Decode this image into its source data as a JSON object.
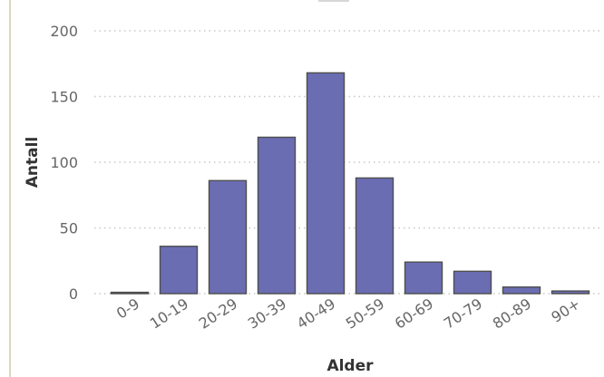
{
  "chart_data": {
    "type": "bar",
    "title": "",
    "xlabel": "Alder",
    "ylabel": "Antall",
    "categories": [
      "0-9",
      "10-19",
      "20-29",
      "30-39",
      "40-49",
      "50-59",
      "60-69",
      "70-79",
      "80-89",
      "90+"
    ],
    "values": [
      1,
      36,
      86,
      119,
      168,
      88,
      24,
      17,
      5,
      2
    ],
    "ylim": [
      0,
      200
    ],
    "yticks": [
      0,
      50,
      100,
      150,
      200
    ],
    "grid": "horizontal-dotted",
    "colors": {
      "bar": "#6b6db3",
      "bar_stroke": "#4d4d4d",
      "grid": "#c8c8c8",
      "tick_text": "#666666",
      "axis_title": "#333333",
      "panel_rule": "#ddd7bf"
    }
  }
}
